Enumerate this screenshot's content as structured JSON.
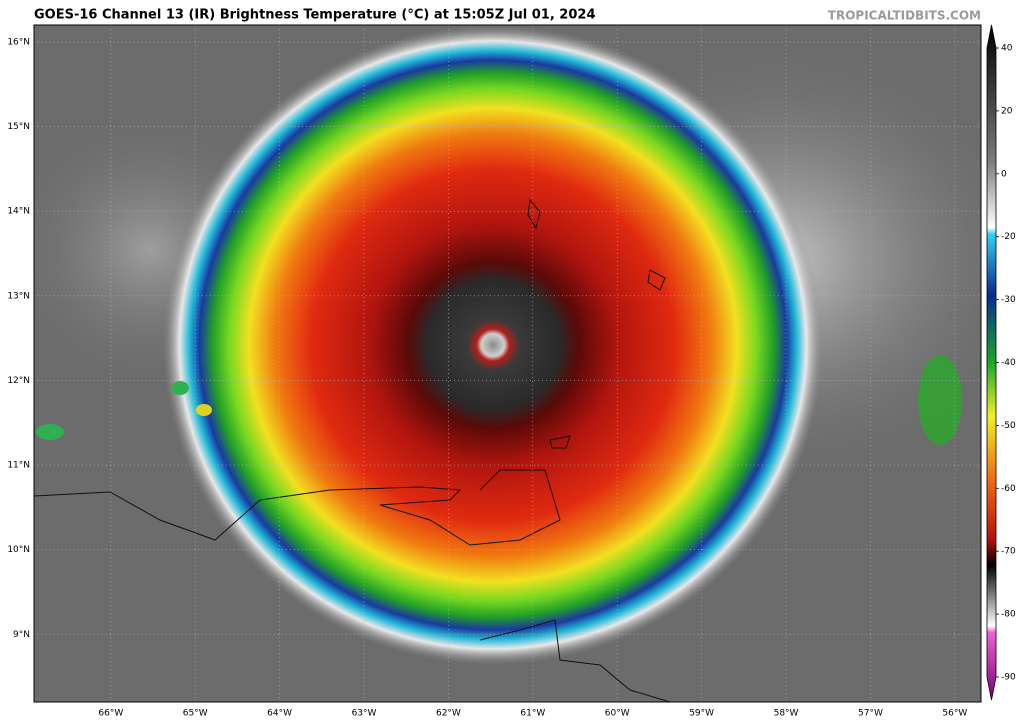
{
  "header": {
    "title": "GOES-16 Channel 13 (IR) Brightness Temperature (°C) at 15:05Z Jul 01, 2024",
    "credit": "TROPICALTIDBITS.COM"
  },
  "map": {
    "lat_lim": [
      8.2,
      16.2
    ],
    "lon_lim": [
      -66.91,
      -55.69
    ],
    "lat_ticks": [
      {
        "value": 9,
        "label": "9°N"
      },
      {
        "value": 10,
        "label": "10°N"
      },
      {
        "value": 11,
        "label": "11°N"
      },
      {
        "value": 12,
        "label": "12°N"
      },
      {
        "value": 13,
        "label": "13°N"
      },
      {
        "value": 14,
        "label": "14°N"
      },
      {
        "value": 15,
        "label": "15°N"
      },
      {
        "value": 16,
        "label": "16°N"
      }
    ],
    "lon_ticks": [
      {
        "value": -66,
        "label": "66°W"
      },
      {
        "value": -65,
        "label": "65°W"
      },
      {
        "value": -64,
        "label": "64°W"
      },
      {
        "value": -63,
        "label": "63°W"
      },
      {
        "value": -62,
        "label": "62°W"
      },
      {
        "value": -61,
        "label": "61°W"
      },
      {
        "value": -60,
        "label": "60°W"
      },
      {
        "value": -59,
        "label": "59°W"
      },
      {
        "value": -58,
        "label": "58°W"
      },
      {
        "value": -57,
        "label": "57°W"
      },
      {
        "value": -56,
        "label": "56°W"
      }
    ]
  },
  "colorbar": {
    "ticks": [
      40,
      20,
      0,
      -20,
      -30,
      -40,
      -50,
      -60,
      -70,
      -80,
      -90
    ]
  }
}
